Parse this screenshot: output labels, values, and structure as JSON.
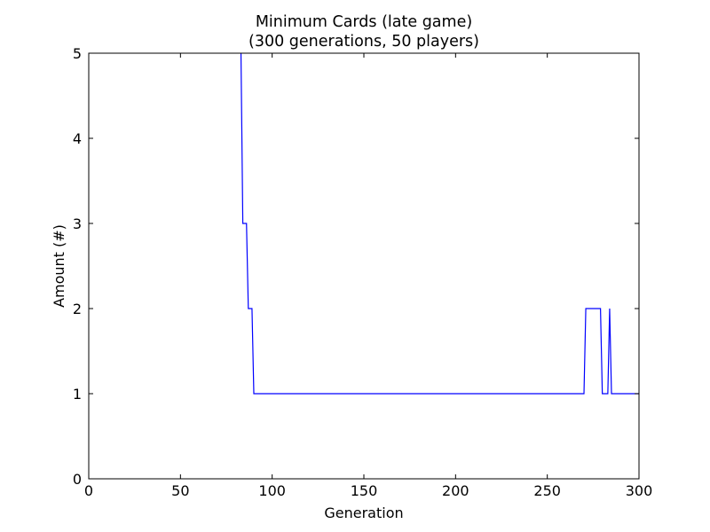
{
  "chart_data": {
    "type": "line",
    "title": [
      "Minimum Cards (late game)",
      "(300 generations, 50 players)"
    ],
    "xlabel": "Generation",
    "ylabel": "Amount (#)",
    "xlim": [
      0,
      300
    ],
    "ylim": [
      0,
      5
    ],
    "xticks": [
      0,
      50,
      100,
      150,
      200,
      250,
      300
    ],
    "yticks": [
      0,
      1,
      2,
      3,
      4,
      5
    ],
    "grid": false,
    "legend": "none",
    "series": [
      {
        "color": "#0000ff",
        "points": [
          [
            82,
            6
          ],
          [
            83,
            5
          ],
          [
            84,
            3
          ],
          [
            85,
            3
          ],
          [
            86,
            3
          ],
          [
            87,
            2
          ],
          [
            88,
            2
          ],
          [
            89,
            2
          ],
          [
            90,
            1
          ],
          [
            100,
            1
          ],
          [
            150,
            1
          ],
          [
            200,
            1
          ],
          [
            250,
            1
          ],
          [
            270,
            1
          ],
          [
            271,
            2
          ],
          [
            272,
            2
          ],
          [
            275,
            2
          ],
          [
            278,
            2
          ],
          [
            279,
            2
          ],
          [
            280,
            1
          ],
          [
            281,
            1
          ],
          [
            282,
            1
          ],
          [
            283,
            1
          ],
          [
            284,
            2
          ],
          [
            285,
            1
          ],
          [
            290,
            1
          ],
          [
            300,
            1
          ]
        ]
      }
    ]
  }
}
